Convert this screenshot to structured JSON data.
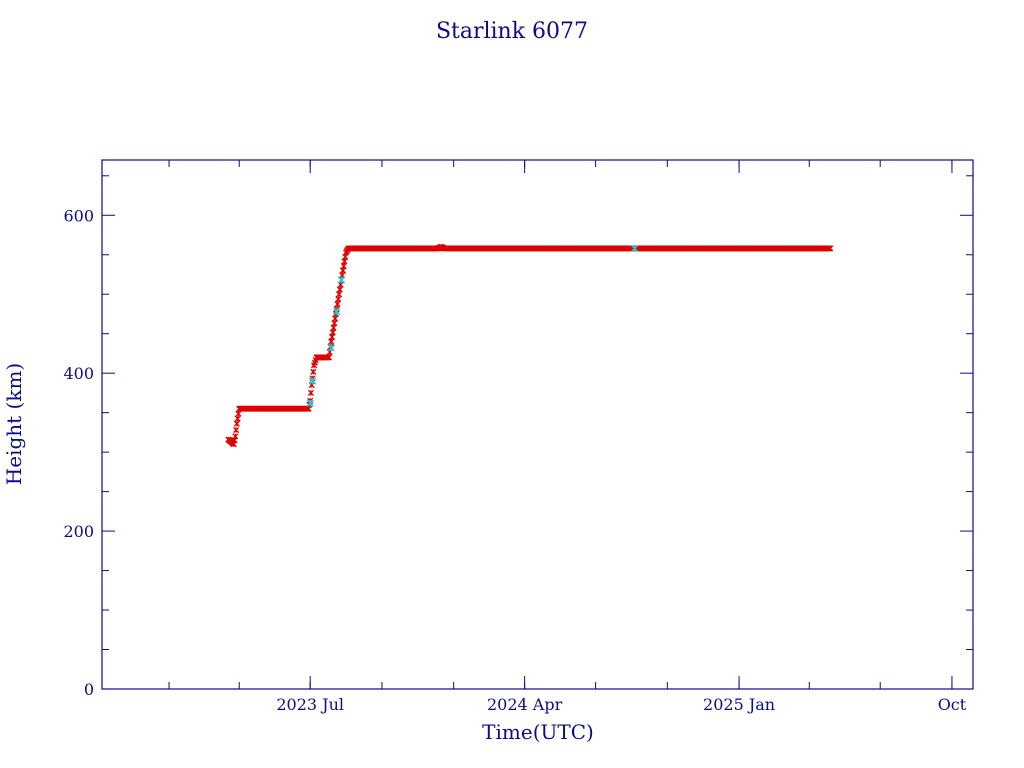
{
  "chart_data": {
    "type": "scatter",
    "title": "Starlink 6077",
    "xlabel": "Time(UTC)",
    "ylabel": "Height (km)",
    "xlim": [
      "2022-10-07",
      "2025-10-28"
    ],
    "ylim": [
      0,
      670
    ],
    "x_tick_labels": [
      {
        "date": "2023-07-01",
        "label": "2023 Jul"
      },
      {
        "date": "2024-04-01",
        "label": "2024 Apr"
      },
      {
        "date": "2025-01-01",
        "label": "2025 Jan"
      },
      {
        "date": "2025-10-01",
        "label": "Oct"
      }
    ],
    "y_ticks": [
      0,
      200,
      400,
      600
    ],
    "grid": false,
    "legend": "none",
    "colors": {
      "frame": "#0b0b8c",
      "text": "#0b0b8c",
      "main_series": "#e00000",
      "highlight_series": "#20c8d8"
    },
    "series": [
      {
        "color": "#e00000",
        "points": [
          [
            "2023-03-18",
            316
          ],
          [
            "2023-03-22",
            313
          ],
          [
            "2023-03-25",
            310
          ],
          [
            "2023-03-27",
            320
          ],
          [
            "2023-03-29",
            336
          ],
          [
            "2023-04-01",
            355
          ],
          [
            "2023-06-29",
            355
          ],
          [
            "2023-07-01",
            365
          ],
          [
            "2023-07-03",
            385
          ],
          [
            "2023-07-06",
            410
          ],
          [
            "2023-07-09",
            420
          ],
          [
            "2023-07-25",
            420
          ],
          [
            "2023-07-28",
            440
          ],
          [
            "2023-08-03",
            475
          ],
          [
            "2023-08-07",
            500
          ],
          [
            "2023-08-12",
            530
          ],
          [
            "2023-08-16",
            553
          ],
          [
            "2023-08-19",
            558
          ],
          [
            "2023-12-12",
            558
          ],
          [
            "2023-12-16",
            560
          ],
          [
            "2023-12-20",
            558
          ],
          [
            "2024-08-20",
            558
          ],
          [
            "2025-04-28",
            558
          ]
        ]
      },
      {
        "color": "#20c8d8",
        "points": [
          [
            "2023-07-01",
            362
          ],
          [
            "2023-07-04",
            390
          ],
          [
            "2023-07-28",
            432
          ],
          [
            "2023-08-04",
            478
          ],
          [
            "2023-08-10",
            518
          ],
          [
            "2024-08-20",
            558
          ]
        ]
      }
    ]
  }
}
